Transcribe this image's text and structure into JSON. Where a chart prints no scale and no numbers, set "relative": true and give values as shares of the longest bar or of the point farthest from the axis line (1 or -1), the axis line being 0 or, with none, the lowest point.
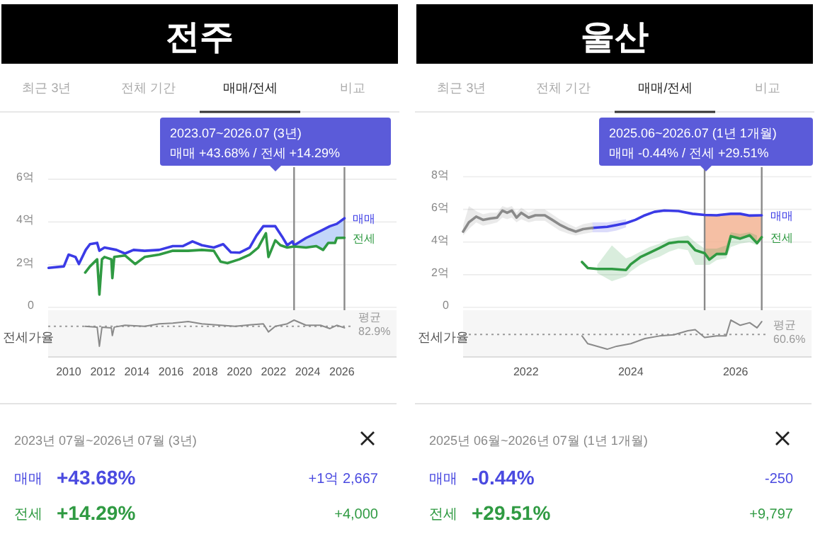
{
  "chart_data": [
    {
      "type": "line",
      "title": "전주",
      "annotations": [
        "최근 3년",
        "전체 기간",
        "매매/전세",
        "비교",
        "2023.07~2026.07 (3년)",
        "매매 +43.68%  /  전세 +14.29%"
      ],
      "xlim": [
        2008.8,
        2029.2
      ],
      "ylim": [
        0,
        6.5
      ],
      "yticks": [
        0,
        {
          "value": 2,
          "label": "2억"
        },
        {
          "value": 4,
          "label": "4억"
        },
        {
          "value": 6,
          "label": "6억"
        }
      ],
      "grid": "y",
      "tick_labels": "y",
      "ref_lines": [
        {
          "axis": "x",
          "value": 2023.2,
          "label": null,
          "color": "#8a8a8a"
        },
        {
          "axis": "x",
          "value": 2026.15,
          "label": null,
          "color": "#8a8a8a"
        }
      ],
      "series": [
        {
          "name": "매매",
          "color": "#3b3be6",
          "x": [
            2008.83,
            2009.72,
            2010.0,
            2010.4,
            2010.6,
            2011.0,
            2011.25,
            2011.67,
            2011.8,
            2012.1,
            2012.8,
            2013.3,
            2013.8,
            2014.45,
            2015.3,
            2016.1,
            2016.7,
            2017.25,
            2017.8,
            2018.5,
            2019.05,
            2019.5,
            2020.0,
            2020.6,
            2021.0,
            2021.4,
            2022.1,
            2022.5,
            2022.8,
            2023.1,
            2023.2,
            2023.9,
            2024.75,
            2025.3,
            2025.7,
            2026.15
          ],
          "values": [
            1.85,
            1.92,
            2.47,
            2.36,
            2.03,
            2.69,
            2.96,
            3.02,
            2.65,
            2.8,
            2.69,
            2.52,
            2.69,
            2.65,
            2.69,
            2.87,
            2.87,
            3.09,
            2.91,
            2.8,
            2.96,
            2.58,
            2.56,
            2.8,
            3.36,
            3.8,
            3.8,
            3.31,
            2.91,
            3.09,
            2.9,
            3.25,
            3.58,
            3.8,
            3.91,
            4.17
          ]
        },
        {
          "name": "전세",
          "color": "#2f9a42",
          "x": [
            2010.97,
            2011.25,
            2011.67,
            2011.8,
            2011.95,
            2012.1,
            2012.5,
            2012.56,
            2012.67,
            2013.3,
            2013.9,
            2014.45,
            2015.3,
            2016.1,
            2017.0,
            2017.8,
            2018.5,
            2018.9,
            2019.3,
            2020.0,
            2020.6,
            2021.1,
            2021.55,
            2021.7,
            2022.1,
            2022.4,
            2022.8,
            2023.2,
            2023.9,
            2024.5,
            2024.9,
            2025.2,
            2025.6,
            2025.7,
            2026.15
          ],
          "values": [
            1.63,
            1.92,
            2.25,
            0.6,
            2.25,
            2.36,
            2.25,
            1.37,
            2.36,
            2.43,
            2.03,
            2.36,
            2.47,
            2.65,
            2.65,
            2.69,
            2.65,
            2.14,
            2.07,
            2.25,
            2.47,
            2.8,
            3.47,
            2.36,
            3.14,
            2.91,
            2.8,
            2.85,
            2.8,
            2.87,
            2.69,
            3.02,
            3.02,
            3.25,
            3.26
          ]
        }
      ]
    },
    {
      "type": "line",
      "relative": true,
      "ylabel": "전세가율",
      "xlim": [
        2008.8,
        2029.2
      ],
      "xticks": [
        2010,
        2012,
        2014,
        2016,
        2018,
        2020,
        2022,
        2024,
        2026
      ],
      "tick_labels": "x",
      "ref_lines": [
        {
          "axis": "y",
          "value": 0.83,
          "label": "평균 82.9%",
          "color": "#9a9a9a",
          "line_style": "dotted"
        }
      ],
      "series": [
        {
          "color": "#8a8a8a",
          "x": [
            2010.97,
            2011.67,
            2011.8,
            2011.95,
            2012.5,
            2012.56,
            2012.67,
            2013.3,
            2014.45,
            2015.3,
            2016.1,
            2017.0,
            2017.8,
            2018.9,
            2019.75,
            2020.6,
            2021.4,
            2021.7,
            2022.1,
            2022.8,
            2023.2,
            2023.9,
            2024.75,
            2025.3,
            2025.7,
            2026.15
          ],
          "values": [
            0.83,
            0.81,
            0.29,
            0.81,
            0.79,
            0.58,
            0.81,
            0.86,
            0.83,
            0.9,
            0.92,
            0.96,
            0.9,
            0.86,
            0.83,
            0.87,
            0.9,
            0.68,
            0.83,
            0.9,
            1,
            0.86,
            0.86,
            0.77,
            0.86,
            0.79
          ]
        }
      ]
    },
    {
      "type": "other",
      "title": "2023년 07월~2026년 07월 (3년)",
      "annotations": [
        "매매",
        "+43.68%",
        "+1억 2,667",
        "전세",
        "+14.29%",
        "+4,000"
      ],
      "colors": [
        "#4a4ae0",
        "#2f9a42"
      ]
    },
    {
      "type": "line",
      "title": "울산",
      "annotations": [
        "최근 3년",
        "전체 기간",
        "매매/전세",
        "비교",
        "2025.06~2026.07 (1년 1개월)",
        "매매 -0.44%  /  전세 +29.51%"
      ],
      "xlim": [
        2020.8,
        2027.45
      ],
      "ylim": [
        0,
        8.5
      ],
      "yticks": [
        0,
        {
          "value": 2,
          "label": "2억"
        },
        {
          "value": 4,
          "label": "4억"
        },
        {
          "value": 6,
          "label": "6억"
        },
        {
          "value": 8,
          "label": "8억"
        }
      ],
      "grid": "y",
      "tick_labels": "y",
      "ref_lines": [
        {
          "axis": "x",
          "value": 2025.41,
          "label": null,
          "color": "#8a8a8a"
        },
        {
          "axis": "x",
          "value": 2026.5,
          "label": null,
          "color": "#8a8a8a"
        }
      ],
      "series": [
        {
          "name": "매매",
          "color": "#3b3be6",
          "x": [
            2023.27,
            2023.55,
            2023.73,
            2023.91,
            2024.09,
            2024.27,
            2024.45,
            2024.64,
            2024.91,
            2025.18,
            2025.41,
            2025.64,
            2025.91,
            2026.09,
            2026.27,
            2026.5
          ],
          "values": [
            4.87,
            4.93,
            5.04,
            5.16,
            5.36,
            5.64,
            5.85,
            5.93,
            5.9,
            5.73,
            5.66,
            5.64,
            5.73,
            5.73,
            5.62,
            5.64
          ],
          "lower": [
            4.6,
            4.6,
            4.7,
            4.9,
            null,
            null,
            null,
            null,
            null,
            null,
            null,
            null,
            null,
            null,
            null,
            null
          ],
          "upper": [
            5.2,
            5.2,
            5.3,
            5.4,
            null,
            null,
            null,
            null,
            null,
            null,
            null,
            null,
            null,
            null,
            null,
            null
          ]
        },
        {
          "name": "전세",
          "color": "#2f9a42",
          "x": [
            2023.07,
            2023.18,
            2023.36,
            2023.64,
            2023.91,
            2024.0,
            2024.18,
            2024.36,
            2024.55,
            2024.73,
            2024.91,
            2025.09,
            2025.23,
            2025.41,
            2025.5,
            2025.64,
            2025.82,
            2025.91,
            2026.09,
            2026.27,
            2026.41,
            2026.5
          ],
          "values": [
            2.78,
            2.41,
            2.35,
            2.35,
            2.29,
            2.64,
            3.07,
            3.35,
            3.64,
            3.93,
            4.01,
            4.01,
            3.5,
            3.32,
            2.92,
            3.27,
            3.27,
            4.36,
            4.21,
            4.41,
            3.93,
            4.3
          ],
          "lower": [
            null,
            null,
            2.1,
            1.6,
            1.9,
            2.2,
            2.6,
            2.9,
            3.1,
            3.4,
            3.6,
            3.5,
            2.6,
            2.6,
            2.6,
            2.9,
            3.0,
            3.7,
            3.9,
            4.0,
            3.8,
            null
          ],
          "upper": [
            null,
            null,
            2.6,
            3.8,
            3.0,
            3.1,
            3.4,
            3.7,
            3.9,
            4.2,
            4.3,
            4.4,
            4.0,
            3.6,
            3.6,
            3.6,
            3.8,
            4.6,
            4.5,
            4.6,
            4.4,
            null
          ]
        },
        {
          "color": "#8a8a8a",
          "x": [
            2020.8,
            2020.91,
            2021.05,
            2021.18,
            2021.32,
            2021.45,
            2021.55,
            2021.64,
            2021.73,
            2021.82,
            2021.91,
            2022.05,
            2022.18,
            2022.36,
            2022.5,
            2022.64,
            2022.82,
            2022.95,
            2023.09,
            2023.27
          ],
          "values": [
            4.64,
            5.21,
            5.56,
            5.36,
            5.44,
            5.5,
            5.93,
            5.79,
            5.93,
            5.5,
            5.79,
            5.5,
            5.64,
            5.64,
            5.36,
            5.07,
            4.79,
            4.64,
            4.79,
            4.87
          ],
          "lower": [
            4.4,
            4.8,
            5.2,
            5.0,
            5.1,
            5.2,
            5.5,
            5.4,
            5.5,
            5.2,
            5.4,
            5.2,
            5.3,
            5.3,
            5.0,
            4.7,
            4.5,
            4.4,
            4.5,
            4.6
          ],
          "upper": [
            5.0,
            6.2,
            5.9,
            5.7,
            5.8,
            5.8,
            6.2,
            6.1,
            6.2,
            5.8,
            6.1,
            5.8,
            6.0,
            6.0,
            5.7,
            5.4,
            5.1,
            4.9,
            5.1,
            5.2
          ]
        }
      ]
    },
    {
      "type": "line",
      "relative": true,
      "ylabel": "전세가율",
      "xlim": [
        2020.8,
        2027.45
      ],
      "xticks": [
        2022,
        2024,
        2026
      ],
      "tick_labels": "x",
      "ref_lines": [
        {
          "axis": "y",
          "value": 0.61,
          "label": "평균 60.6%",
          "color": "#9a9a9a",
          "line_style": "dotted"
        }
      ],
      "series": [
        {
          "color": "#8a8a8a",
          "x": [
            2023.07,
            2023.18,
            2023.36,
            2023.55,
            2023.73,
            2024.0,
            2024.27,
            2024.55,
            2024.82,
            2025.09,
            2025.23,
            2025.41,
            2025.64,
            2025.82,
            2025.91,
            2026.09,
            2026.27,
            2026.41,
            2026.5
          ],
          "values": [
            0.57,
            0.36,
            0.29,
            0.21,
            0.29,
            0.36,
            0.5,
            0.57,
            0.6,
            0.71,
            0.74,
            0.53,
            0.57,
            0.57,
            1,
            0.86,
            0.93,
            0.79,
            0.96
          ]
        }
      ]
    },
    {
      "type": "other",
      "title": "2025년 06월~2026년 07월 (1년 1개월)",
      "annotations": [
        "매매",
        "-0.44%",
        "-250",
        "전세",
        "+29.51%",
        "+9,797"
      ],
      "colors": [
        "#4a4ae0",
        "#2f9a42"
      ]
    }
  ]
}
